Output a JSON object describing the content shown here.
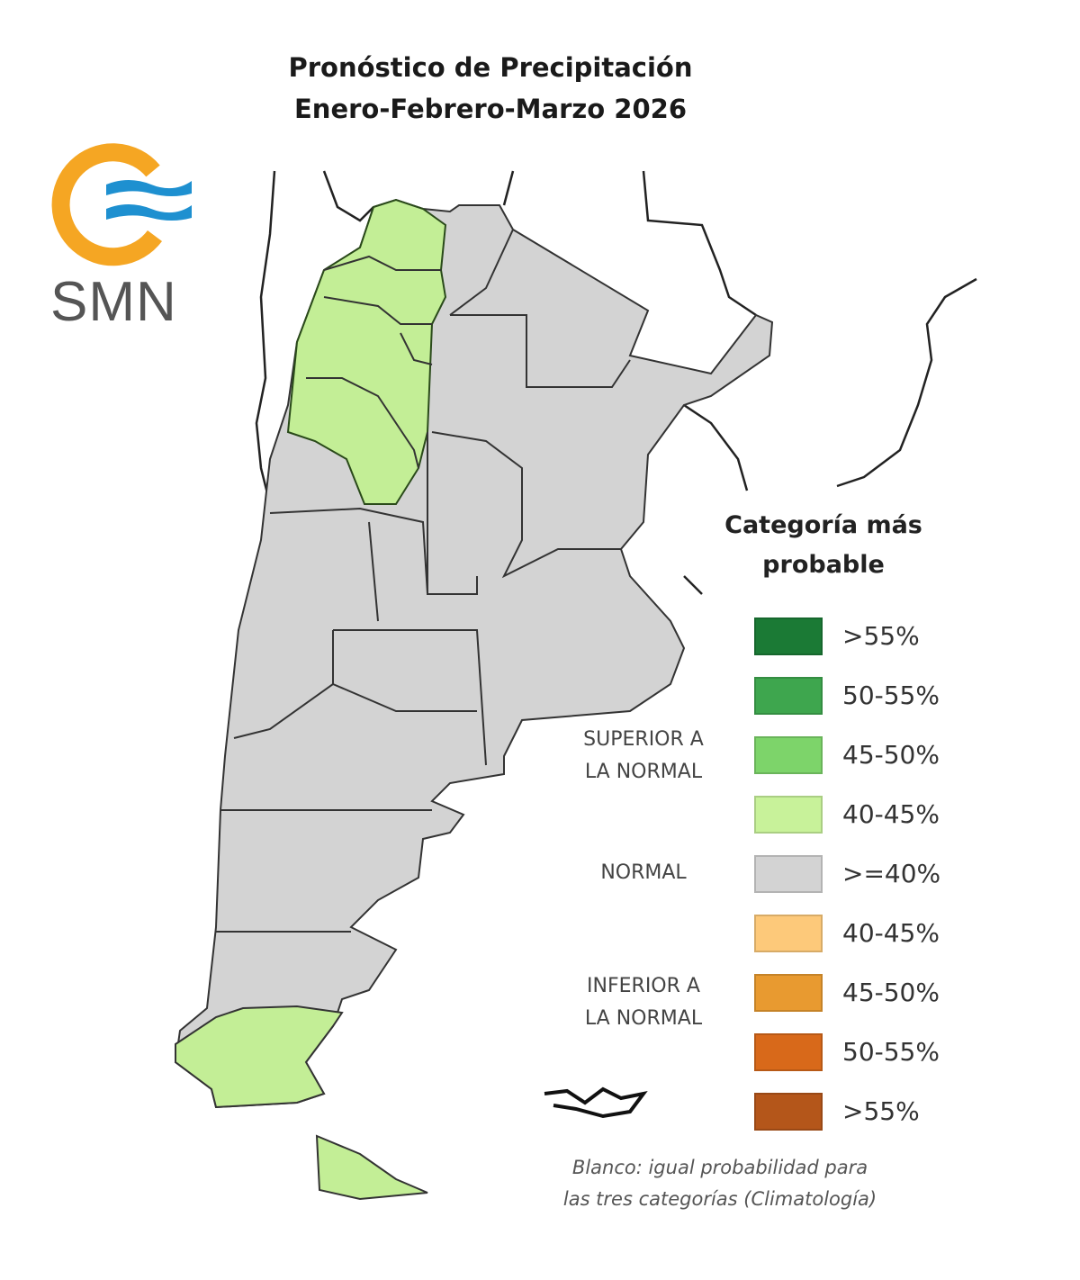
{
  "title": {
    "line1": "Pronóstico de Precipitación",
    "line2": "Enero-Febrero-Marzo 2026"
  },
  "logo": {
    "text": "SMN",
    "ring_color": "#f5a623",
    "wave_color": "#1e90d0"
  },
  "map": {
    "regions": [
      {
        "region": "northwest",
        "category": "Superior a la normal",
        "range": "40-45%",
        "color": "#c3ee96"
      },
      {
        "region": "south-patagonia",
        "category": "Superior a la normal",
        "range": "40-45%",
        "color": "#c3ee96"
      },
      {
        "region": "tierra-del-fuego",
        "category": "Superior a la normal",
        "range": "40-45%",
        "color": "#c3ee96"
      },
      {
        "region": "rest",
        "category": "Normal",
        "range": ">=40%",
        "color": "#d3d3d3"
      }
    ]
  },
  "legend": {
    "title_line1": "Categoría más",
    "title_line2": "probable",
    "groups": {
      "superior_1": "SUPERIOR A",
      "superior_2": "LA NORMAL",
      "normal": "NORMAL",
      "inferior_1": "INFERIOR A",
      "inferior_2": "LA NORMAL"
    },
    "items": [
      {
        "label": ">55%",
        "color": "#1b7a35"
      },
      {
        "label": "50-55%",
        "color": "#3ea64e"
      },
      {
        "label": "45-50%",
        "color": "#7dd46a"
      },
      {
        "label": "40-45%",
        "color": "#c8f29a"
      },
      {
        "label": ">=40%",
        "color": "#d3d3d3"
      },
      {
        "label": "40-45%",
        "color": "#fdc97a"
      },
      {
        "label": "45-50%",
        "color": "#e89a30"
      },
      {
        "label": "50-55%",
        "color": "#d8691a"
      },
      {
        "label": ">55%",
        "color": "#b4561a"
      }
    ],
    "note_line1": "Blanco: igual probabilidad para",
    "note_line2": "las tres categorías (Climatología)"
  }
}
